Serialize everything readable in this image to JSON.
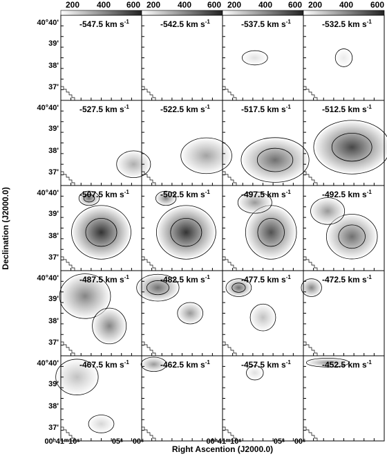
{
  "colorbar": {
    "ticks": [
      "200",
      "400",
      "600"
    ]
  },
  "panels": [
    {
      "label": "-547.5 km s",
      "sup": "-1"
    },
    {
      "label": "-542.5 km s",
      "sup": "-1"
    },
    {
      "label": "-537.5 km s",
      "sup": "-1"
    },
    {
      "label": "-532.5 km s",
      "sup": "-1"
    },
    {
      "label": "-527.5 km s",
      "sup": "-1"
    },
    {
      "label": "-522.5 km s",
      "sup": "-1"
    },
    {
      "label": "-517.5 km s",
      "sup": "-1"
    },
    {
      "label": "-512.5 km s",
      "sup": "-1"
    },
    {
      "label": "-507.5 km s",
      "sup": "-1"
    },
    {
      "label": "-502.5 km s",
      "sup": "-1"
    },
    {
      "label": "-497.5 km s",
      "sup": "-1"
    },
    {
      "label": "-492.5 km s",
      "sup": "-1"
    },
    {
      "label": "-487.5 km s",
      "sup": "-1"
    },
    {
      "label": "-482.5 km s",
      "sup": "-1"
    },
    {
      "label": "-477.5 km s",
      "sup": "-1"
    },
    {
      "label": "-472.5 km s",
      "sup": "-1"
    },
    {
      "label": "-467.5 km s",
      "sup": "-1"
    },
    {
      "label": "-462.5 km s",
      "sup": "-1"
    },
    {
      "label": "-457.5 km s",
      "sup": "-1"
    },
    {
      "label": "-452.5 km s",
      "sup": "-1"
    }
  ],
  "y_tick_labels": [
    "40°40'",
    "39'",
    "38'",
    "37'"
  ],
  "x_tick_labels": [
    "00ʰ41ᵐ10ˢ",
    "05ˢ",
    "00ˢ"
  ],
  "y_axis_title": "Declination (J2000.0)",
  "x_axis_title": "Right Ascention (J2000.0)"
}
